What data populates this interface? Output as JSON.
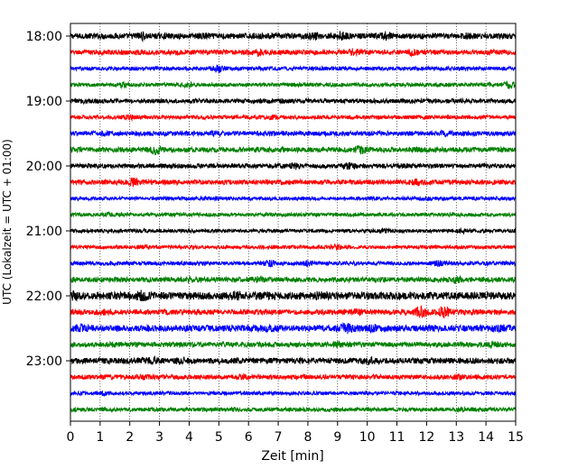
{
  "chart_data": {
    "type": "line",
    "title": "",
    "xlabel": "Zeit  [min]",
    "ylabel": "UTC (Lokalzeit = UTC + 01:00)",
    "xlim": [
      0,
      15
    ],
    "x_ticks": [
      0,
      1,
      2,
      3,
      4,
      5,
      6,
      7,
      8,
      9,
      10,
      11,
      12,
      13,
      14,
      15
    ],
    "x_tick_labels": [
      "0",
      "1",
      "2",
      "3",
      "4",
      "5",
      "6",
      "7",
      "8",
      "9",
      "10",
      "11",
      "12",
      "13",
      "14",
      "15"
    ],
    "y_tick_labels": [
      "18:00",
      "19:00",
      "20:00",
      "21:00",
      "22:00",
      "23:00"
    ],
    "grid": "vertical dotted lines at each minute",
    "color_cycle": [
      "#000000",
      "#ff0000",
      "#0000ff",
      "#008000"
    ],
    "series": [
      {
        "start": "18:00",
        "color": "#000000",
        "amplitude": 0.32,
        "events": [
          [
            2.4,
            0.55
          ],
          [
            4.5,
            0.45
          ],
          [
            8.2,
            0.5
          ],
          [
            9.1,
            0.6
          ],
          [
            10.6,
            0.55
          ],
          [
            13.4,
            0.45
          ]
        ]
      },
      {
        "start": "18:15",
        "color": "#ff0000",
        "amplitude": 0.28,
        "events": [
          [
            6.3,
            0.5
          ],
          [
            9.6,
            0.55
          ],
          [
            11.5,
            0.45
          ]
        ]
      },
      {
        "start": "18:30",
        "color": "#0000ff",
        "amplitude": 0.22,
        "events": [
          [
            5.0,
            0.55
          ]
        ]
      },
      {
        "start": "18:45",
        "color": "#008000",
        "amplitude": 0.22,
        "events": [
          [
            1.8,
            0.4
          ],
          [
            4.0,
            0.35
          ],
          [
            14.8,
            0.5
          ]
        ]
      },
      {
        "start": "19:00",
        "color": "#000000",
        "amplitude": 0.25,
        "events": [
          [
            0.5,
            0.35
          ],
          [
            7.2,
            0.3
          ]
        ]
      },
      {
        "start": "19:15",
        "color": "#ff0000",
        "amplitude": 0.22,
        "events": [
          [
            2.0,
            0.35
          ],
          [
            6.8,
            0.3
          ]
        ]
      },
      {
        "start": "19:30",
        "color": "#0000ff",
        "amplitude": 0.26,
        "events": [
          [
            1.2,
            0.35
          ],
          [
            4.9,
            0.35
          ],
          [
            12.6,
            0.35
          ]
        ]
      },
      {
        "start": "19:45",
        "color": "#008000",
        "amplitude": 0.28,
        "events": [
          [
            2.9,
            0.6
          ],
          [
            9.8,
            0.55
          ],
          [
            11.8,
            0.35
          ]
        ]
      },
      {
        "start": "20:00",
        "color": "#000000",
        "amplitude": 0.26,
        "events": [
          [
            7.6,
            0.5
          ],
          [
            9.4,
            0.45
          ],
          [
            11.2,
            0.3
          ]
        ]
      },
      {
        "start": "20:15",
        "color": "#ff0000",
        "amplitude": 0.28,
        "events": [
          [
            2.1,
            0.55
          ],
          [
            11.7,
            0.45
          ]
        ]
      },
      {
        "start": "20:30",
        "color": "#0000ff",
        "amplitude": 0.2,
        "events": [
          [
            0.3,
            0.25
          ],
          [
            5.0,
            0.25
          ],
          [
            12.0,
            0.3
          ]
        ]
      },
      {
        "start": "20:45",
        "color": "#008000",
        "amplitude": 0.2,
        "events": [
          [
            1.3,
            0.3
          ],
          [
            12.9,
            0.3
          ]
        ]
      },
      {
        "start": "21:00",
        "color": "#000000",
        "amplitude": 0.2,
        "events": [
          [
            10.5,
            0.35
          ],
          [
            13.2,
            0.3
          ]
        ]
      },
      {
        "start": "21:15",
        "color": "#ff0000",
        "amplitude": 0.2,
        "events": [
          [
            2.5,
            0.3
          ],
          [
            9.0,
            0.35
          ]
        ]
      },
      {
        "start": "21:30",
        "color": "#0000ff",
        "amplitude": 0.22,
        "events": [
          [
            6.7,
            0.45
          ],
          [
            8.0,
            0.4
          ],
          [
            12.4,
            0.4
          ]
        ]
      },
      {
        "start": "21:45",
        "color": "#008000",
        "amplitude": 0.28,
        "events": [
          [
            4.1,
            0.45
          ],
          [
            6.3,
            0.45
          ],
          [
            13.0,
            0.5
          ]
        ]
      },
      {
        "start": "22:00",
        "color": "#000000",
        "amplitude": 0.42,
        "events": [
          [
            0.1,
            0.6
          ],
          [
            2.4,
            0.7
          ],
          [
            5.6,
            0.6
          ],
          [
            6.6,
            0.55
          ],
          [
            8.4,
            0.6
          ]
        ]
      },
      {
        "start": "22:15",
        "color": "#ff0000",
        "amplitude": 0.3,
        "events": [
          [
            1.1,
            0.4
          ],
          [
            11.8,
            0.75
          ],
          [
            12.6,
            0.7
          ],
          [
            9.7,
            0.45
          ]
        ]
      },
      {
        "start": "22:30",
        "color": "#0000ff",
        "amplitude": 0.36,
        "events": [
          [
            0.3,
            0.55
          ],
          [
            6.7,
            0.55
          ],
          [
            9.3,
            0.7
          ],
          [
            10.2,
            0.5
          ],
          [
            14.4,
            0.5
          ]
        ]
      },
      {
        "start": "22:45",
        "color": "#008000",
        "amplitude": 0.28,
        "events": [
          [
            1.5,
            0.4
          ],
          [
            9.0,
            0.45
          ],
          [
            14.3,
            0.4
          ]
        ]
      },
      {
        "start": "23:00",
        "color": "#000000",
        "amplitude": 0.32,
        "events": [
          [
            2.8,
            0.55
          ],
          [
            3.7,
            0.45
          ],
          [
            10.1,
            0.55
          ],
          [
            14.5,
            0.35
          ]
        ]
      },
      {
        "start": "23:15",
        "color": "#ff0000",
        "amplitude": 0.26,
        "events": [
          [
            2.5,
            0.4
          ],
          [
            5.8,
            0.35
          ],
          [
            13.0,
            0.35
          ]
        ]
      },
      {
        "start": "23:30",
        "color": "#0000ff",
        "amplitude": 0.2,
        "events": [
          [
            1.1,
            0.3
          ],
          [
            6.0,
            0.25
          ]
        ]
      },
      {
        "start": "23:45",
        "color": "#008000",
        "amplitude": 0.22,
        "events": [
          [
            5.5,
            0.3
          ],
          [
            13.1,
            0.3
          ]
        ]
      }
    ]
  }
}
